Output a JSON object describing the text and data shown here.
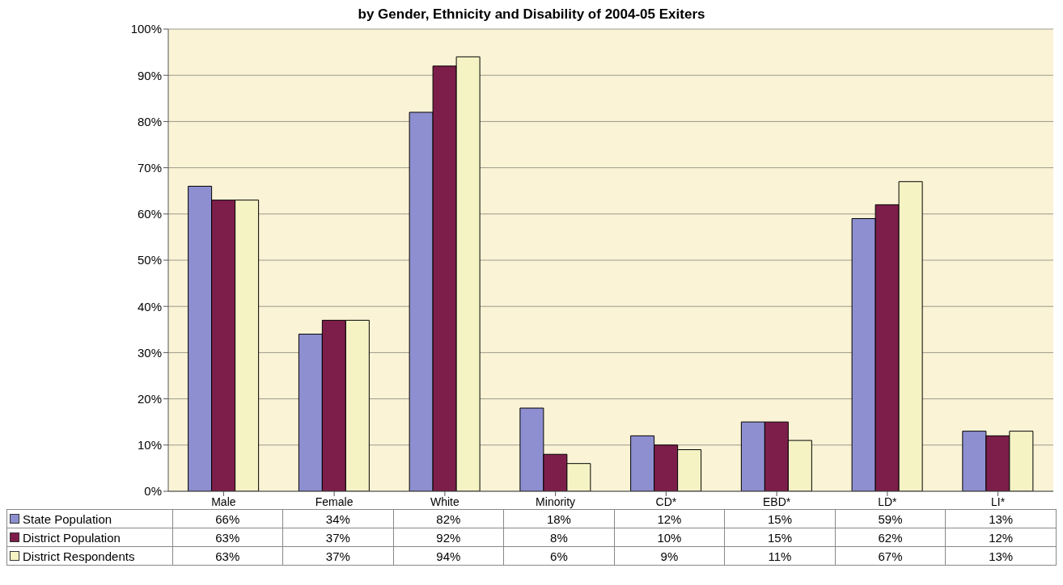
{
  "chart_data": {
    "type": "bar",
    "title": "by Gender, Ethnicity and Disability of 2004-05 Exiters",
    "categories": [
      "Male",
      "Female",
      "White",
      "Minority",
      "CD*",
      "EBD*",
      "LD*",
      "LI*"
    ],
    "series": [
      {
        "name": "State Population",
        "color": "#8e8fd0",
        "values": [
          66,
          34,
          82,
          18,
          12,
          15,
          59,
          13
        ],
        "value_labels": [
          "66%",
          "34%",
          "82%",
          "18%",
          "12%",
          "15%",
          "59%",
          "13%"
        ]
      },
      {
        "name": "District Population",
        "color": "#7d1e4a",
        "values": [
          63,
          37,
          92,
          8,
          10,
          15,
          62,
          12
        ],
        "value_labels": [
          "63%",
          "37%",
          "92%",
          "8%",
          "10%",
          "15%",
          "62%",
          "12%"
        ]
      },
      {
        "name": "District Respondents",
        "color": "#f5f3c4",
        "values": [
          63,
          37,
          94,
          6,
          9,
          11,
          67,
          13
        ],
        "value_labels": [
          "63%",
          "37%",
          "94%",
          "6%",
          "9%",
          "11%",
          "67%",
          "13%"
        ]
      }
    ],
    "ylim": [
      0,
      100
    ],
    "yticks": [
      {
        "value": 0,
        "label": "0%"
      },
      {
        "value": 10,
        "label": "10%"
      },
      {
        "value": 20,
        "label": "20%"
      },
      {
        "value": 30,
        "label": "30%"
      },
      {
        "value": 40,
        "label": "40%"
      },
      {
        "value": 50,
        "label": "50%"
      },
      {
        "value": 60,
        "label": "60%"
      },
      {
        "value": 70,
        "label": "70%"
      },
      {
        "value": 80,
        "label": "80%"
      },
      {
        "value": 90,
        "label": "90%"
      },
      {
        "value": 100,
        "label": "100%"
      }
    ],
    "grid": "y",
    "legend": "bottom left"
  }
}
